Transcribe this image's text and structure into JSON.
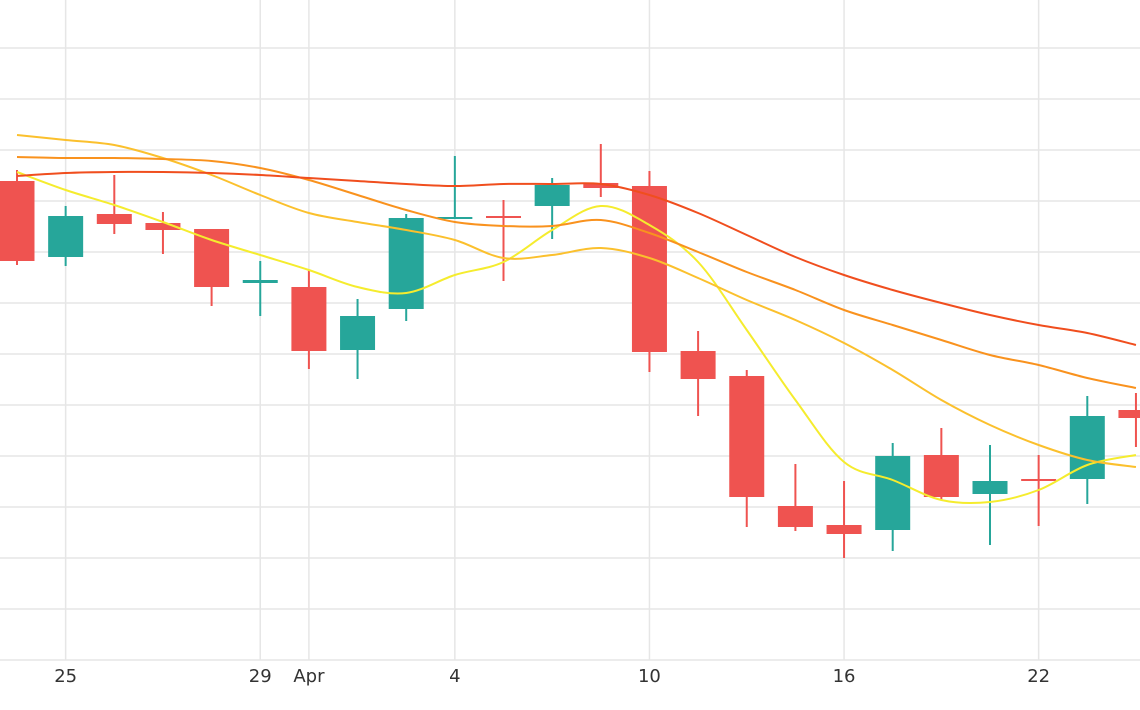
{
  "chart_data": {
    "type": "candlestick",
    "categories": [
      null,
      "25",
      null,
      null,
      null,
      "29",
      "Apr",
      null,
      null,
      "4",
      null,
      null,
      null,
      "10",
      null,
      null,
      null,
      "16",
      null,
      null,
      null,
      "22",
      null,
      null
    ],
    "open": [
      479,
      403,
      446,
      437,
      431,
      377,
      373,
      310,
      351,
      441,
      444,
      454,
      477,
      474,
      309,
      284,
      154,
      135,
      130,
      205,
      166,
      181,
      181,
      250
    ],
    "high": [
      490,
      454,
      485,
      448,
      431,
      399,
      390,
      361,
      446,
      504,
      460,
      482,
      516,
      489,
      329,
      290,
      196,
      179,
      217,
      232,
      215,
      205,
      264,
      267
    ],
    "low": [
      395,
      394,
      426,
      406,
      354,
      344,
      291,
      281,
      339,
      441,
      379,
      421,
      463,
      288,
      244,
      133,
      129,
      102,
      109,
      160,
      115,
      134,
      156,
      213
    ],
    "close": [
      399,
      444,
      436,
      430,
      373,
      380,
      309,
      344,
      442,
      443,
      443,
      475,
      472,
      308,
      281,
      163,
      133,
      126,
      204,
      163,
      179,
      179,
      244,
      242
    ],
    "up_color": "#26a69a",
    "down_color": "#ef5350",
    "series": [
      {
        "color": "#f5ec2e",
        "values": [
          488,
          470,
          455,
          438,
          420,
          405,
          390,
          373,
          367,
          385,
          398,
          430,
          454,
          435,
          398,
          330,
          260,
          198,
          180,
          160,
          158,
          170,
          195,
          205
        ]
      },
      {
        "color": "#fbc02d",
        "values": [
          525,
          520,
          515,
          502,
          485,
          465,
          447,
          438,
          430,
          420,
          402,
          405,
          412,
          402,
          382,
          360,
          340,
          317,
          290,
          260,
          235,
          215,
          200,
          193
        ]
      },
      {
        "color": "#f9921e",
        "values": [
          503,
          502,
          502,
          501,
          499,
          492,
          480,
          465,
          450,
          438,
          434,
          434,
          440,
          427,
          408,
          388,
          370,
          350,
          335,
          320,
          305,
          295,
          282,
          272
        ]
      },
      {
        "color": "#f04e1e",
        "values": [
          484,
          487,
          488,
          488,
          487,
          485,
          482,
          479,
          476,
          474,
          476,
          476,
          476,
          465,
          447,
          425,
          403,
          385,
          370,
          357,
          345,
          335,
          327,
          315
        ]
      }
    ],
    "ylim": [
      0,
      660
    ],
    "yticks": [
      51,
      102,
      153,
      204,
      255,
      306,
      357,
      408,
      459,
      510,
      561,
      612
    ],
    "grid": true
  }
}
